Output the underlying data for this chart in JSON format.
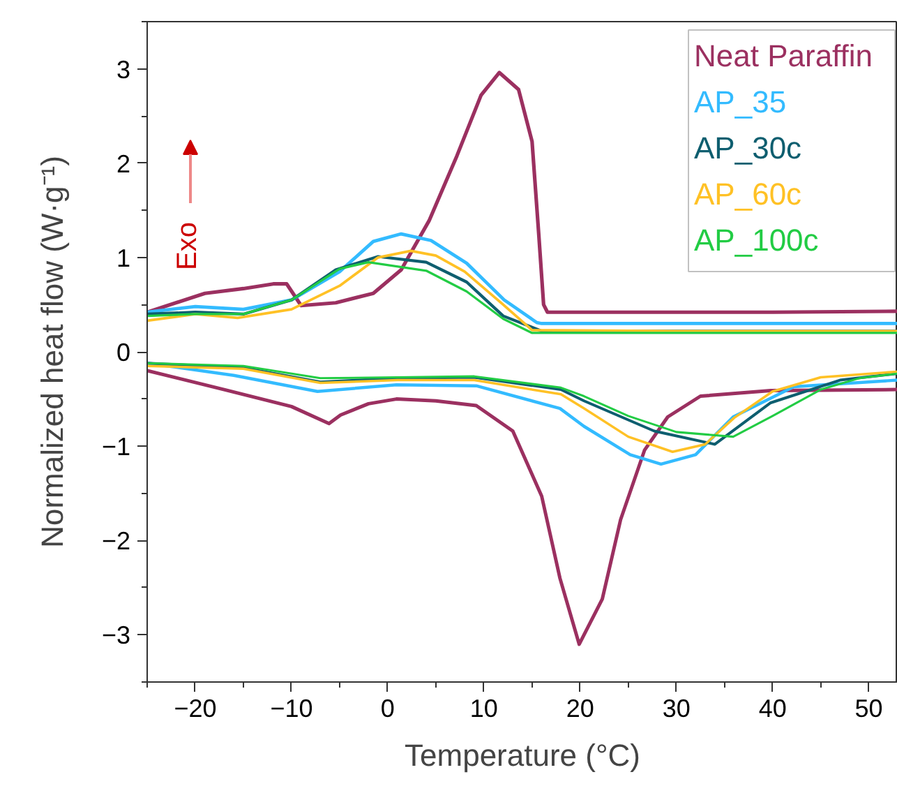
{
  "chart_data": {
    "type": "line",
    "xlabel": "Temperature (°C)",
    "ylabel": "Normalized heat flow (W·g⁻¹)",
    "xlim": [
      -25,
      53
    ],
    "ylim": [
      -3.5,
      3.5
    ],
    "xticks": [
      -20,
      -10,
      0,
      10,
      20,
      30,
      40,
      50
    ],
    "yticks": [
      -3,
      -2,
      -1,
      0,
      1,
      2,
      3
    ],
    "grid": false,
    "legend": "top right",
    "marker": "none",
    "line_style": "solid",
    "annotations": [
      "Exo"
    ],
    "series": [
      {
        "name": "Neat Paraffin",
        "color": "#9b3060",
        "x": [
          53,
          40,
          30,
          20,
          16.6,
          16.2,
          15.7,
          15,
          13.6,
          11.6,
          9.7,
          7.2,
          4.3,
          1.4,
          -1.5,
          -5.4,
          -9,
          -10.5,
          -11.9,
          -15,
          -19,
          -25
        ],
        "values": [
          0.43,
          0.42,
          0.42,
          0.42,
          0.42,
          0.5,
          1.24,
          2.23,
          2.78,
          2.96,
          2.72,
          2.08,
          1.39,
          0.87,
          0.62,
          0.52,
          0.49,
          0.72,
          0.72,
          0.67,
          0.62,
          0.42
        ]
      },
      {
        "color": "#9b3060",
        "x": [
          -25,
          -17,
          -10,
          -6.1,
          -4.9,
          -2,
          0.9,
          5,
          9.2,
          13,
          16,
          17.9,
          19.9,
          22.3,
          24.2,
          26.7,
          29.1,
          32.5,
          39.8,
          53
        ],
        "values": [
          -0.2,
          -0.4,
          -0.58,
          -0.76,
          -0.67,
          -0.55,
          -0.5,
          -0.52,
          -0.57,
          -0.84,
          -1.53,
          -2.4,
          -3.1,
          -2.62,
          -1.78,
          -1.04,
          -0.69,
          -0.47,
          -0.41,
          -0.4
        ]
      },
      {
        "name": "AP_35",
        "color": "#33bbff",
        "x": [
          53,
          30,
          16,
          15.5,
          12.1,
          8.2,
          4.5,
          1.4,
          -1.5,
          -5,
          -10,
          -15,
          -20,
          -25
        ],
        "values": [
          0.3,
          0.3,
          0.3,
          0.31,
          0.55,
          0.94,
          1.18,
          1.25,
          1.17,
          0.85,
          0.55,
          0.45,
          0.48,
          0.42
        ]
      },
      {
        "color": "#33bbff",
        "x": [
          -25,
          -16,
          -7.3,
          0.9,
          9.2,
          17.9,
          20.4,
          25.2,
          28.4,
          32,
          35.9,
          42.2,
          53
        ],
        "values": [
          -0.12,
          -0.25,
          -0.42,
          -0.35,
          -0.36,
          -0.6,
          -0.79,
          -1.09,
          -1.19,
          -1.09,
          -0.69,
          -0.37,
          -0.3
        ]
      },
      {
        "name": "AP_30c",
        "color": "#0e5e6f",
        "x": [
          53,
          30,
          16,
          12,
          8.2,
          4,
          -1,
          -5.4,
          -10,
          -15,
          -20,
          -25
        ],
        "values": [
          0.22,
          0.22,
          0.22,
          0.38,
          0.74,
          0.95,
          1.01,
          0.87,
          0.55,
          0.4,
          0.42,
          0.4
        ]
      },
      {
        "color": "#0e5e6f",
        "x": [
          -25,
          -15,
          -7,
          1,
          9,
          18,
          20.4,
          27.7,
          34,
          39.8,
          47,
          53
        ],
        "values": [
          -0.12,
          -0.17,
          -0.32,
          -0.28,
          -0.27,
          -0.4,
          -0.52,
          -0.84,
          -0.98,
          -0.54,
          -0.3,
          -0.23
        ]
      },
      {
        "name": "AP_60c",
        "color": "#ffc125",
        "x": [
          53,
          30,
          15,
          12,
          8,
          5,
          2.4,
          -1,
          -5,
          -10,
          -15.6,
          -20,
          -25
        ],
        "values": [
          0.22,
          0.22,
          0.23,
          0.5,
          0.85,
          1.02,
          1.07,
          1.0,
          0.7,
          0.45,
          0.36,
          0.4,
          0.33
        ]
      },
      {
        "color": "#ffc125",
        "x": [
          -25,
          -15,
          -7,
          1,
          9,
          18,
          20.4,
          25,
          29.6,
          33,
          36,
          40,
          45,
          53
        ],
        "values": [
          -0.15,
          -0.18,
          -0.33,
          -0.3,
          -0.3,
          -0.45,
          -0.6,
          -0.9,
          -1.06,
          -0.98,
          -0.7,
          -0.42,
          -0.27,
          -0.21
        ]
      },
      {
        "name": "AP_100c",
        "color": "#22cc44",
        "x": [
          53,
          30,
          15,
          12,
          8.2,
          4,
          -2,
          -5,
          -10,
          -15,
          -20,
          -25
        ],
        "values": [
          0.2,
          0.2,
          0.2,
          0.35,
          0.64,
          0.86,
          0.95,
          0.88,
          0.55,
          0.4,
          0.4,
          0.38
        ]
      },
      {
        "color": "#22cc44",
        "x": [
          -25,
          -15,
          -7,
          1,
          9,
          18,
          20.4,
          25,
          30,
          35.9,
          40,
          45,
          49,
          53
        ],
        "values": [
          -0.12,
          -0.15,
          -0.28,
          -0.27,
          -0.26,
          -0.38,
          -0.47,
          -0.68,
          -0.85,
          -0.9,
          -0.68,
          -0.4,
          -0.28,
          -0.23
        ]
      }
    ]
  }
}
